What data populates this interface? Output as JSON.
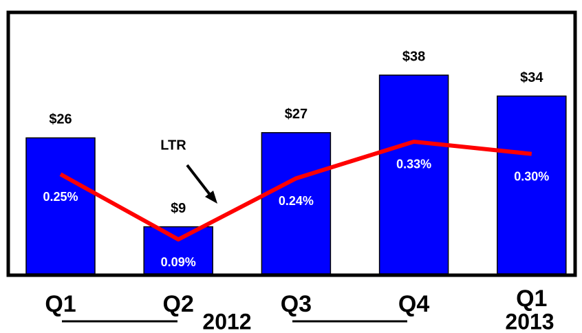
{
  "chart_data": {
    "type": "bar",
    "categories": [
      "Q1",
      "Q2",
      "Q3",
      "Q4",
      "Q1"
    ],
    "series": [
      {
        "type": "bar",
        "color": "#0000ff",
        "values": [
          26,
          9,
          27,
          38,
          34
        ],
        "value_labels": [
          "$26",
          "$9",
          "$27",
          "$38",
          "$34"
        ]
      },
      {
        "type": "line",
        "color": "#ff0000",
        "values": [
          0.25,
          0.09,
          0.24,
          0.33,
          0.3
        ],
        "value_labels": [
          "0.25%",
          "0.09%",
          "0.24%",
          "0.33%",
          "0.30%"
        ]
      }
    ],
    "annotations": [
      "LTR",
      "2012",
      "2013"
    ]
  }
}
